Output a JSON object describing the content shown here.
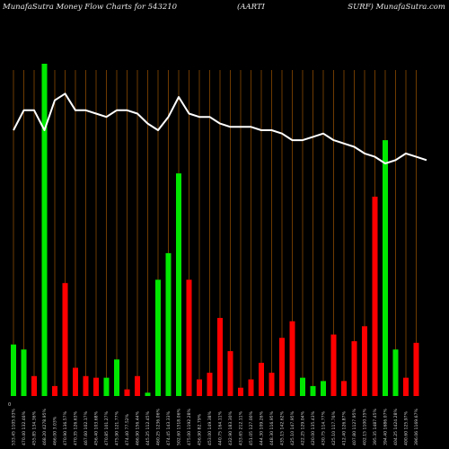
{
  "header": {
    "left": "MunafaSutra  Money Flow  Charts for 543210",
    "middle": "(AARTI",
    "right": "SURF) MunafaSutra.com"
  },
  "chart_data": {
    "type": "bar",
    "zero_label": "0",
    "colors": {
      "up": "#00e800",
      "down": "#ff0000",
      "line": "#ffffff",
      "grid": "#8a4a00"
    },
    "bars": [
      {
        "dir": "up",
        "h": 15.5,
        "label": "533.45 1105.03%"
      },
      {
        "dir": "up",
        "h": 14.0,
        "label": "470.40 132.46%"
      },
      {
        "dir": "down",
        "h": 6.0,
        "label": "455.85 134.36%"
      },
      {
        "dir": "up",
        "h": 100,
        "label": "468.20 4278.95%"
      },
      {
        "dir": "down",
        "h": 3.0,
        "label": "466.00 3.03%"
      },
      {
        "dir": "down",
        "h": 34.0,
        "label": "470.90 136.57%"
      },
      {
        "dir": "down",
        "h": 8.5,
        "label": "470.35 126.63%"
      },
      {
        "dir": "down",
        "h": 6.0,
        "label": "467.60 102.17%"
      },
      {
        "dir": "down",
        "h": 5.5,
        "label": "456.40 103.68%"
      },
      {
        "dir": "up",
        "h": 5.5,
        "label": "470.85 101.27%"
      },
      {
        "dir": "up",
        "h": 11.0,
        "label": "475.90 121.77%"
      },
      {
        "dir": "down",
        "h": 2.0,
        "label": "474.40 77.52%"
      },
      {
        "dir": "down",
        "h": 6.0,
        "label": "466.90 156.44%"
      },
      {
        "dir": "up",
        "h": 1.0,
        "label": "445.25 112.45%"
      },
      {
        "dir": "up",
        "h": 35.0,
        "label": "460.25 1236.06%"
      },
      {
        "dir": "up",
        "h": 43.0,
        "label": "474.45 143.33%"
      },
      {
        "dir": "up",
        "h": 67.0,
        "label": "502.60 1518.06%"
      },
      {
        "dir": "down",
        "h": 35.0,
        "label": "475.00 1192.28%"
      },
      {
        "dir": "down",
        "h": 5.0,
        "label": "456.90 82.79%"
      },
      {
        "dir": "down",
        "h": 7.0,
        "label": "453.00 149.38%"
      },
      {
        "dir": "down",
        "h": 23.5,
        "label": "440.75 164.11%"
      },
      {
        "dir": "down",
        "h": 13.5,
        "label": "432.90 183.30%"
      },
      {
        "dir": "down",
        "h": 2.5,
        "label": "433.65 212.11%"
      },
      {
        "dir": "down",
        "h": 5.0,
        "label": "451.05 127.00%"
      },
      {
        "dir": "down",
        "h": 10.0,
        "label": "444.30 109.26%"
      },
      {
        "dir": "down",
        "h": 7.0,
        "label": "448.30 116.95%"
      },
      {
        "dir": "down",
        "h": 17.5,
        "label": "435.15 142.62%"
      },
      {
        "dir": "down",
        "h": 22.5,
        "label": "425.10 147.95%"
      },
      {
        "dir": "up",
        "h": 5.5,
        "label": "422.25 129.04%"
      },
      {
        "dir": "up",
        "h": 3.0,
        "label": "420.00 135.43%"
      },
      {
        "dir": "up",
        "h": 4.5,
        "label": "430.75 114.77%"
      },
      {
        "dir": "down",
        "h": 18.5,
        "label": "425.10 117.76%"
      },
      {
        "dir": "down",
        "h": 4.5,
        "label": "412.40 126.87%"
      },
      {
        "dir": "down",
        "h": 16.5,
        "label": "407.80 1127.95%"
      },
      {
        "dir": "down",
        "h": 21.0,
        "label": "402.15 1100.35%"
      },
      {
        "dir": "down",
        "h": 60.0,
        "label": "395.35 1487.45%"
      },
      {
        "dir": "up",
        "h": 77.0,
        "label": "394.40 1686.07%"
      },
      {
        "dir": "up",
        "h": 14.0,
        "label": "404.25 1424.28%"
      },
      {
        "dir": "down",
        "h": 5.5,
        "label": "400.60 125.97%"
      },
      {
        "dir": "down",
        "h": 16.0,
        "label": "396.06 1169.67%"
      }
    ],
    "price_line": [
      80,
      86,
      86,
      80,
      89,
      91,
      86,
      86,
      85,
      84,
      86,
      86,
      85,
      82,
      80,
      84,
      90,
      85,
      84,
      84,
      82,
      81,
      81,
      81,
      80,
      80,
      79,
      77,
      77,
      78,
      79,
      77,
      76,
      75,
      73,
      72,
      70,
      71,
      73,
      72,
      71
    ]
  }
}
